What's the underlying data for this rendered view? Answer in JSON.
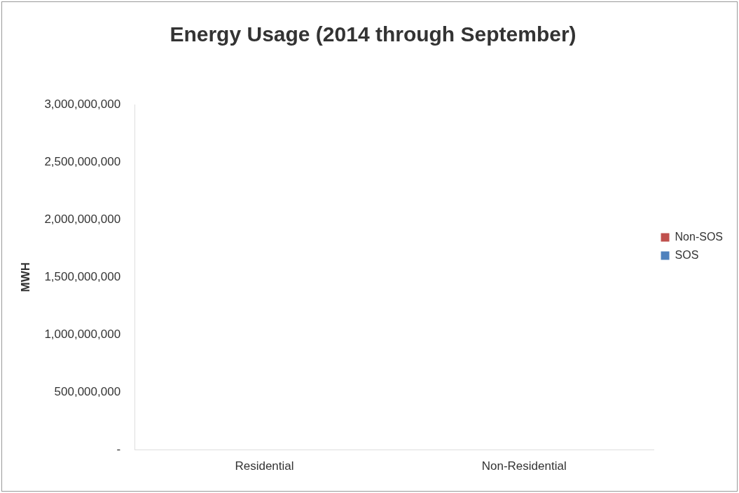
{
  "chart_data": {
    "type": "bar",
    "title": "Energy Usage (2014 through September)",
    "ylabel": "MWH",
    "categories": [
      "Residential",
      "Non-Residential"
    ],
    "series": [
      {
        "name": "SOS",
        "color": "#4f81bd",
        "values": [
          null,
          null
        ]
      },
      {
        "name": "Non-SOS",
        "color": "#c0504d",
        "values": [
          null,
          null
        ]
      }
    ],
    "ylim": [
      0,
      3000000000
    ],
    "yticks": [
      {
        "value": 0,
        "label": "-"
      },
      {
        "value": 500000000,
        "label": "500,000,000"
      },
      {
        "value": 1000000000,
        "label": "1,000,000,000"
      },
      {
        "value": 1500000000,
        "label": "1,500,000,000"
      },
      {
        "value": 2000000000,
        "label": "2,000,000,000"
      },
      {
        "value": 2500000000,
        "label": "2,500,000,000"
      },
      {
        "value": 3000000000,
        "label": "3,000,000,000"
      }
    ],
    "grid": false,
    "legend": "right"
  }
}
